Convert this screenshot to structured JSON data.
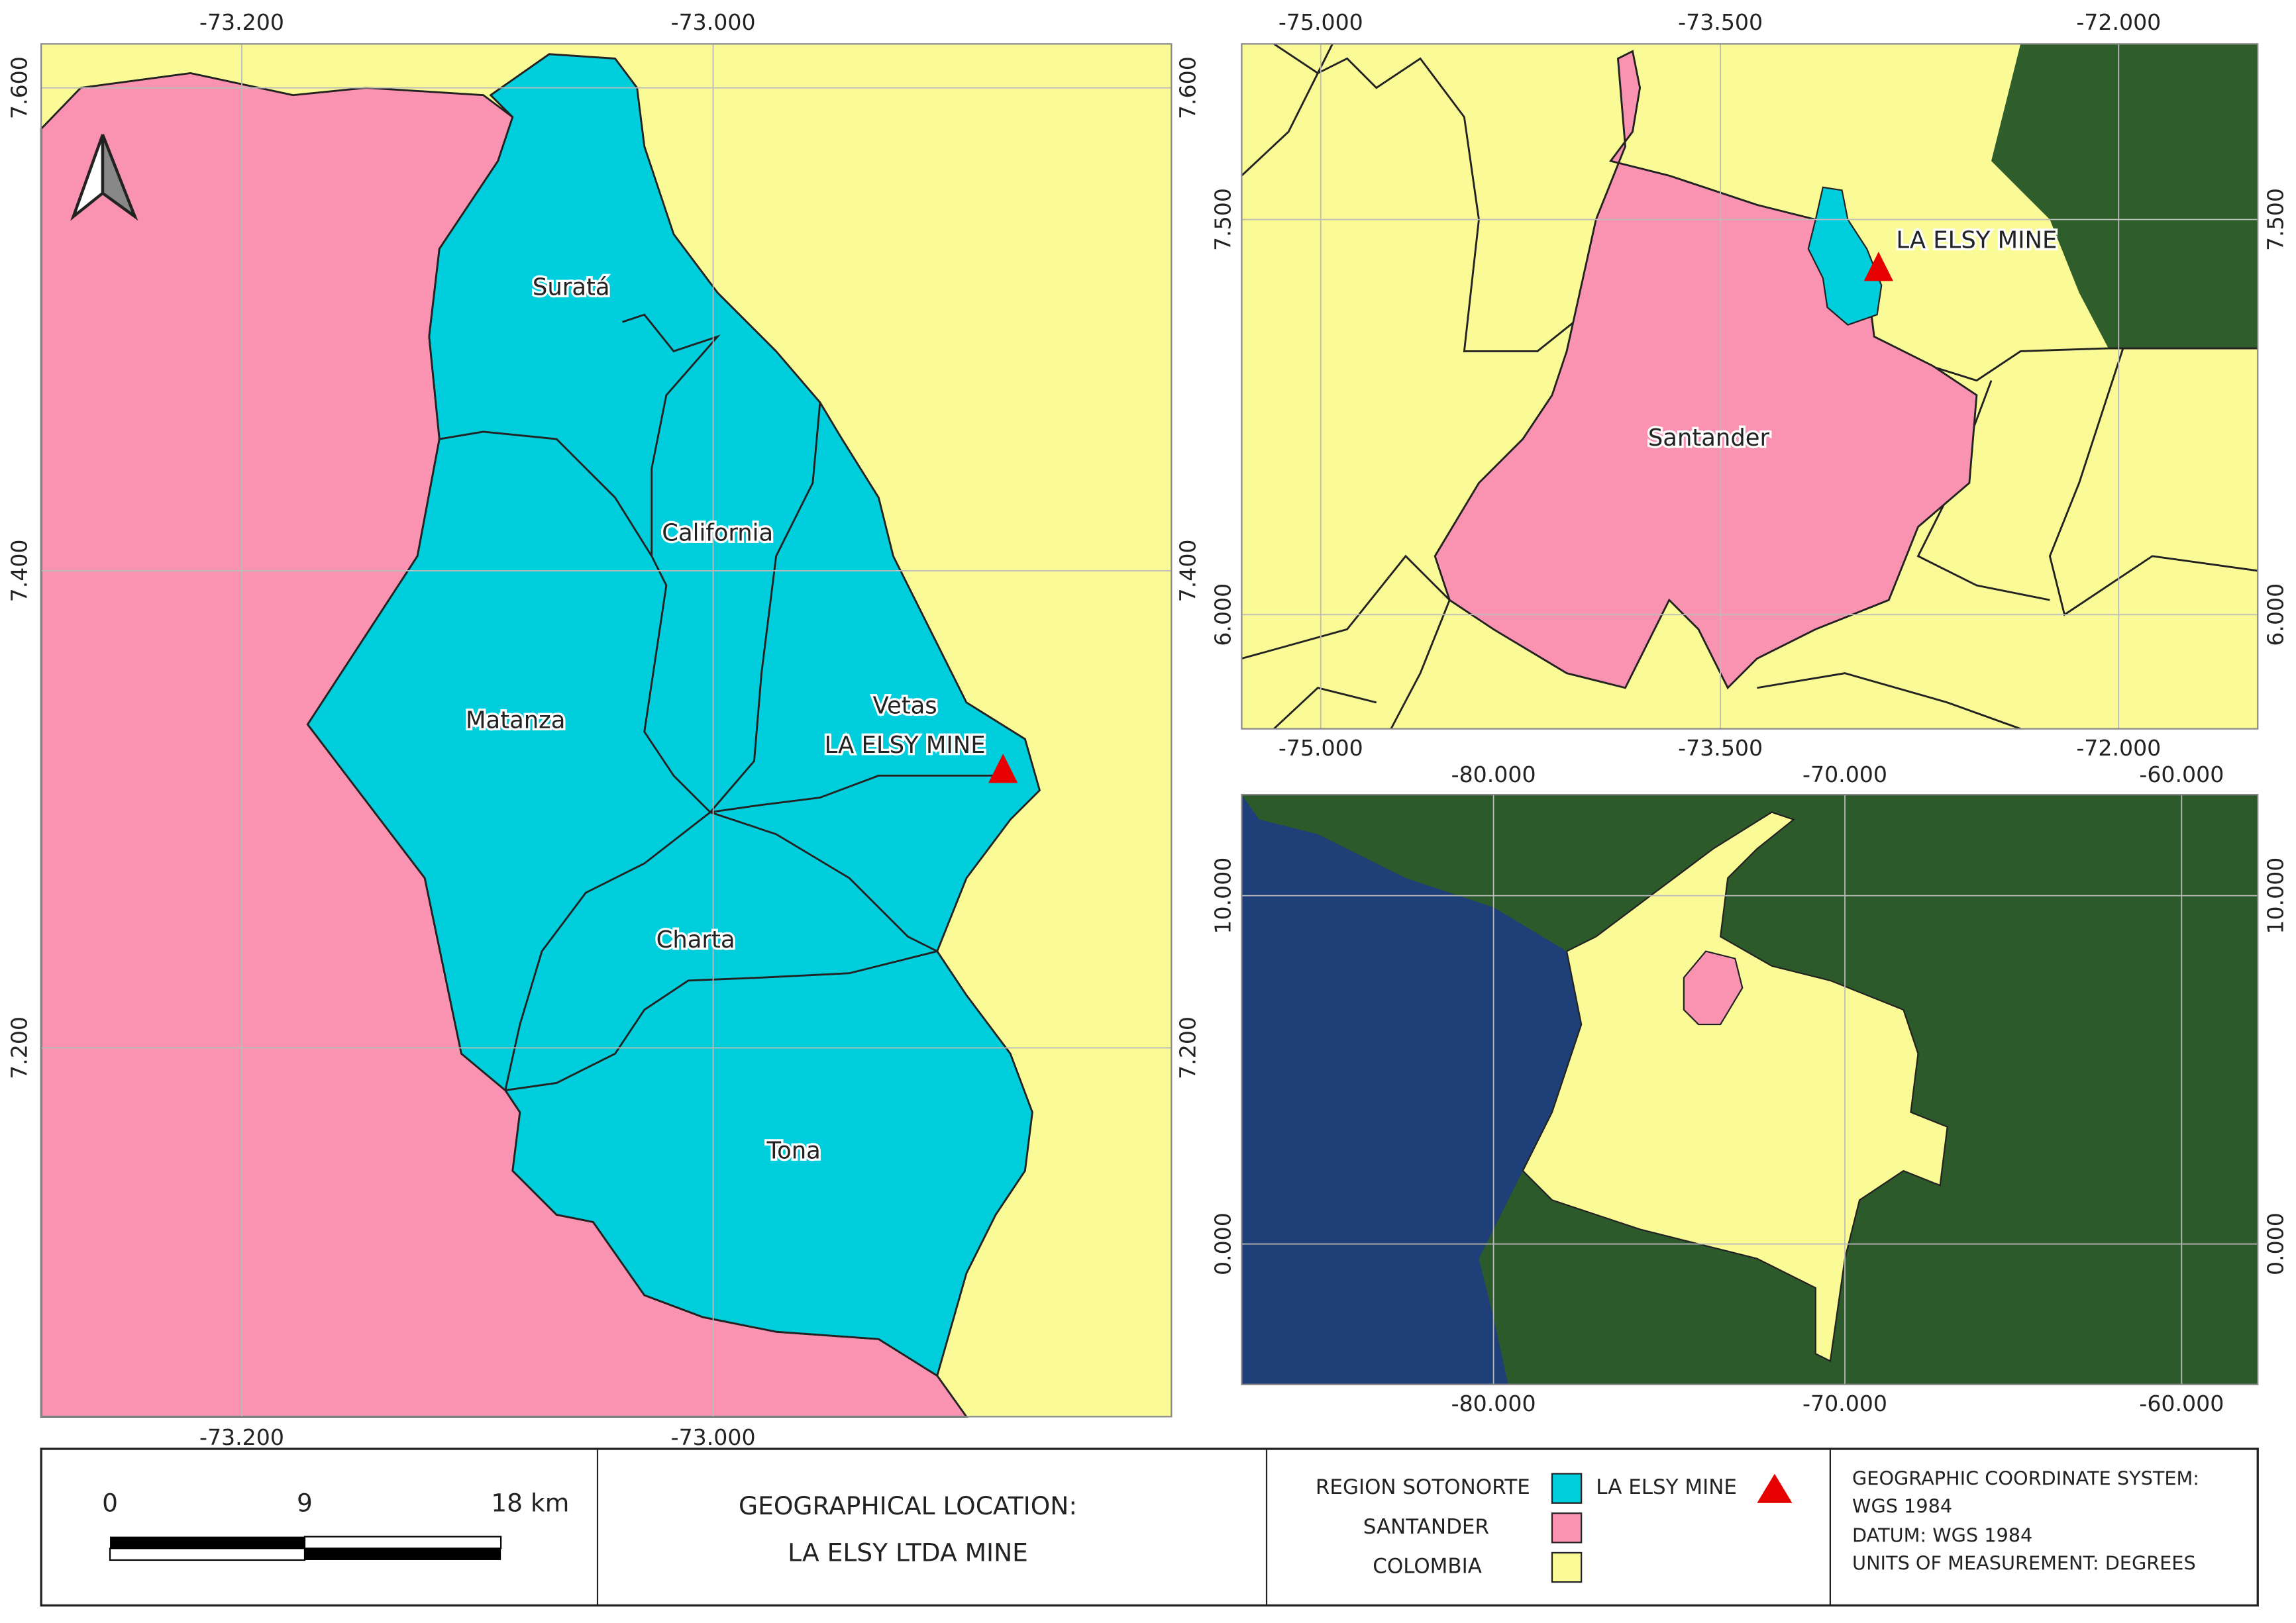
{
  "main_map": {
    "x_ticks_top": [
      "-73.200",
      "-73.000"
    ],
    "x_ticks_bottom": [
      "-73.200",
      "-73.000"
    ],
    "y_ticks_left": [
      "7.600",
      "7.400",
      "7.200"
    ],
    "y_ticks_right": [
      "7.600",
      "7.400",
      "7.200"
    ],
    "municipalities": [
      "Suratá",
      "California",
      "Matanza",
      "Vetas",
      "Charta",
      "Tona"
    ],
    "mine_label": "LA ELSY MINE"
  },
  "department_map": {
    "x_ticks_top": [
      "-75.000",
      "-73.500",
      "-72.000"
    ],
    "x_ticks_bottom": [
      "-75.000",
      "-73.500",
      "-72.000"
    ],
    "y_ticks_left": [
      "7.500",
      "6.000"
    ],
    "y_ticks_right": [
      "7.500",
      "6.000"
    ],
    "department": "Santander",
    "mine_label": "LA ELSY MINE"
  },
  "country_map": {
    "x_ticks_top": [
      "-80.000",
      "-70.000",
      "-60.000"
    ],
    "x_ticks_bottom": [
      "-80.000",
      "-70.000",
      "-60.000"
    ],
    "y_ticks_left": [
      "10.000",
      "0.000"
    ],
    "y_ticks_right": [
      "10.000",
      "0.000"
    ]
  },
  "scale_bar": [
    "0",
    "9",
    "18 km"
  ],
  "title": [
    "GEOGRAPHICAL LOCATION:",
    "LA ELSY LTDA MINE"
  ],
  "legend": {
    "region": "REGION SOTONORTE",
    "mine": "LA ELSY MINE",
    "department": "SANTANDER",
    "country": "COLOMBIA"
  },
  "info": [
    "GEOGRAPHIC COORDINATE SYSTEM:",
    "WGS 1984",
    "DATUM: WGS 1984",
    "UNITS OF MEASUREMENT: DEGREES"
  ]
}
